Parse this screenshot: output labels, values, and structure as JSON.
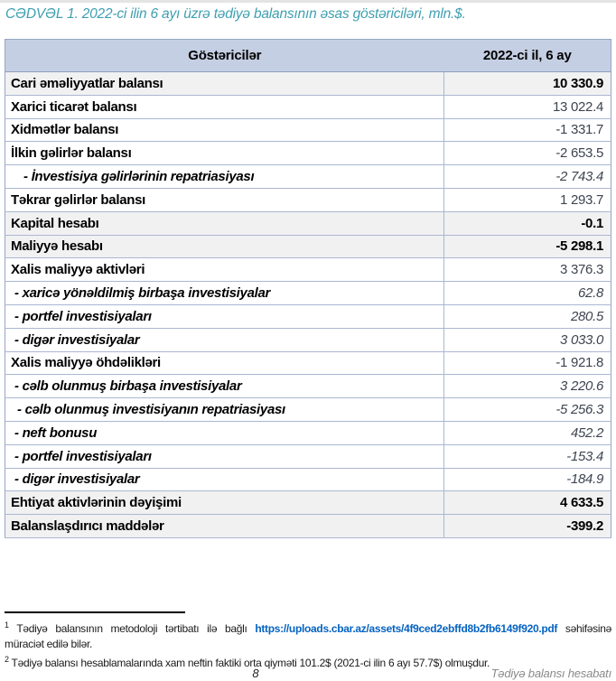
{
  "title": "CƏDVƏL 1. 2022-ci ilin 6 ayı üzrə tədiyə balansının əsas göstəriciləri, mln.$.",
  "table": {
    "columns": [
      "Göstəricilər",
      "2022-ci il, 6 ay"
    ],
    "rows": [
      {
        "label": "Cari əməliyyatlar balansı",
        "value": "10 330.9",
        "style": "highlight"
      },
      {
        "label": "Xarici ticarət balansı",
        "value": "13 022.4",
        "style": "main"
      },
      {
        "label": "Xidmətlər balansı",
        "value": "-1 331.7",
        "style": "main"
      },
      {
        "label": "İlkin gəlirlər balansı",
        "value": "-2 653.5",
        "style": "main"
      },
      {
        "label": "- İnvestisiya gəlirlərinin repatriasiyası",
        "value": "-2 743.4",
        "style": "sub-indent"
      },
      {
        "label": "Təkrar gəlirlər balansı",
        "value": "1 293.7",
        "style": "main"
      },
      {
        "label": "Kapital hesabı",
        "value": "-0.1",
        "style": "highlight"
      },
      {
        "label": "Maliyyə hesabı",
        "value": "-5 298.1",
        "style": "highlight"
      },
      {
        "label": "Xalis maliyyə aktivləri",
        "value": "3 376.3",
        "style": "main"
      },
      {
        "label": "- xaricə yönəldilmiş birbaşa investisiyalar",
        "value": "62.8",
        "style": "sub"
      },
      {
        "label": "- portfel investisiyaları",
        "value": "280.5",
        "style": "sub"
      },
      {
        "label": "- digər investisiyalar",
        "value": "3 033.0",
        "style": "sub"
      },
      {
        "label": "Xalis maliyyə öhdəlikləri",
        "value": "-1 921.8",
        "style": "main"
      },
      {
        "label": "- cəlb olunmuş birbaşa investisiyalar",
        "value": "3 220.6",
        "style": "sub"
      },
      {
        "label": "- cəlb olunmuş investisiyanın repatriasiyası",
        "value": "-5 256.3",
        "style": "sub-small"
      },
      {
        "label": "- neft bonusu",
        "value": "452.2",
        "style": "sub"
      },
      {
        "label": "- portfel investisiyaları",
        "value": "-153.4",
        "style": "sub"
      },
      {
        "label": "- digər investisiyalar",
        "value": "-184.9",
        "style": "sub"
      },
      {
        "label": "Ehtiyat aktivlərinin dəyişimi",
        "value": "4 633.5",
        "style": "highlight"
      },
      {
        "label": "Balanslaşdırıcı maddələr",
        "value": "-399.2",
        "style": "highlight"
      }
    ]
  },
  "footnotes": {
    "fn1": {
      "marker": "1",
      "text_before_link": "Tədiyə balansının metodoloji tərtibatı ilə bağlı",
      "link": "https://uploads.cbar.az/assets/4f9ced2ebffd8b2fb6149f920.pdf",
      "text_after_link": "səhifəsinə",
      "second_line": "müraciət edilə bilər."
    },
    "fn2": {
      "marker": "2",
      "text": "Tədiyə balansı hesablamalarında xam neftin faktiki orta qiyməti 101.2$ (2021-ci ilin 6 ayı 57.7$) olmuşdur."
    }
  },
  "footer": {
    "page_number": "8",
    "report_title": "Tədiyə balansı hesabatı"
  },
  "colors": {
    "title_teal": "#3e9fb0",
    "header_bg": "#c5cfe3",
    "row_highlight_bg": "#f1f1f1",
    "table_border": "#aab7d2",
    "link_blue": "#0563c1",
    "footer_gray": "#8a8a8a"
  }
}
